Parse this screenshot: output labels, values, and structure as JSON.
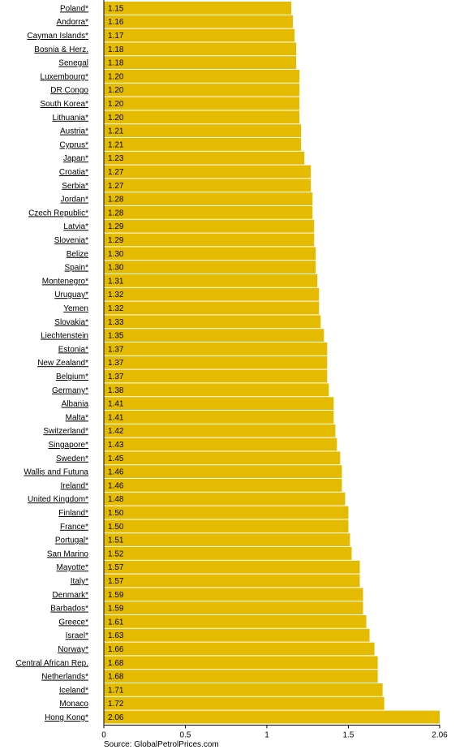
{
  "chart_data": {
    "type": "bar",
    "orientation": "horizontal",
    "categories": [
      "Poland*",
      "Andorra*",
      "Cayman Islands*",
      "Bosnia & Herz.",
      "Senegal",
      "Luxembourg*",
      "DR Congo",
      "South Korea*",
      "Lithuania*",
      "Austria*",
      "Cyprus*",
      "Japan*",
      "Croatia*",
      "Serbia*",
      "Jordan*",
      "Czech Republic*",
      "Latvia*",
      "Slovenia*",
      "Belize",
      "Spain*",
      "Montenegro*",
      "Uruguay*",
      "Yemen",
      "Slovakia*",
      "Liechtenstein",
      "Estonia*",
      "New Zealand*",
      "Belgium*",
      "Germany*",
      "Albania",
      "Malta*",
      "Switzerland*",
      "Singapore*",
      "Sweden*",
      "Wallis and Futuna",
      "Ireland*",
      "United Kingdom*",
      "Finland*",
      "France*",
      "Portugal*",
      "San Marino",
      "Mayotte*",
      "Italy*",
      "Denmark*",
      "Barbados*",
      "Greece*",
      "Israel*",
      "Norway*",
      "Central African Rep.",
      "Netherlands*",
      "Iceland*",
      "Monaco",
      "Hong Kong*"
    ],
    "values": [
      1.15,
      1.16,
      1.17,
      1.18,
      1.18,
      1.2,
      1.2,
      1.2,
      1.2,
      1.21,
      1.21,
      1.23,
      1.27,
      1.27,
      1.28,
      1.28,
      1.29,
      1.29,
      1.3,
      1.3,
      1.31,
      1.32,
      1.32,
      1.33,
      1.35,
      1.37,
      1.37,
      1.37,
      1.38,
      1.41,
      1.41,
      1.42,
      1.43,
      1.45,
      1.46,
      1.46,
      1.48,
      1.5,
      1.5,
      1.51,
      1.52,
      1.57,
      1.57,
      1.59,
      1.59,
      1.61,
      1.63,
      1.66,
      1.68,
      1.68,
      1.71,
      1.72,
      2.06
    ],
    "value_labels": [
      "1.15",
      "1.16",
      "1.17",
      "1.18",
      "1.18",
      "1.20",
      "1.20",
      "1.20",
      "1.20",
      "1.21",
      "1.21",
      "1.23",
      "1.27",
      "1.27",
      "1.28",
      "1.28",
      "1.29",
      "1.29",
      "1.30",
      "1.30",
      "1.31",
      "1.32",
      "1.32",
      "1.33",
      "1.35",
      "1.37",
      "1.37",
      "1.37",
      "1.38",
      "1.41",
      "1.41",
      "1.42",
      "1.43",
      "1.45",
      "1.46",
      "1.46",
      "1.48",
      "1.50",
      "1.50",
      "1.51",
      "1.52",
      "1.57",
      "1.57",
      "1.59",
      "1.59",
      "1.61",
      "1.63",
      "1.66",
      "1.68",
      "1.68",
      "1.71",
      "1.72",
      "2.06"
    ],
    "xlim": [
      0,
      2.06
    ],
    "x_ticks": [
      0,
      0.5,
      1,
      1.5,
      2.06
    ],
    "x_tick_labels": [
      "0",
      "0.5",
      "1",
      "1.5",
      "2.06"
    ],
    "title": "",
    "xlabel": "",
    "ylabel": "",
    "grid": false,
    "bar_color": "#e5bb00",
    "axis_color": "#000000"
  },
  "source": "Source: GlobalPetrolPrices.com"
}
